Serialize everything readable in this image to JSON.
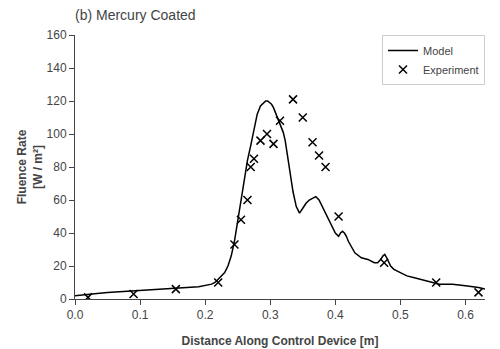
{
  "chart_data": {
    "type": "line",
    "title": "(b) Mercury Coated",
    "xlabel": "Distance Along Control Device [m]",
    "ylabel": "Fluence Rate\n[W / m²]",
    "xlim": [
      0,
      0.63
    ],
    "ylim": [
      0,
      160
    ],
    "xticks": [
      {
        "value": 0.0,
        "label": "0.0"
      },
      0.1,
      0.2,
      0.3,
      0.4,
      0.5,
      0.6
    ],
    "yticks": [
      0,
      20,
      40,
      60,
      80,
      100,
      120,
      140,
      160
    ],
    "grid": false,
    "legend": "upper right",
    "series": [
      {
        "name": "Model",
        "type": "line",
        "line_style": "solid",
        "color": "#000000",
        "x": [
          0.0,
          0.01,
          0.02,
          0.03,
          0.05,
          0.07,
          0.09,
          0.11,
          0.13,
          0.15,
          0.17,
          0.19,
          0.21,
          0.215,
          0.22,
          0.225,
          0.23,
          0.235,
          0.24,
          0.245,
          0.25,
          0.255,
          0.26,
          0.265,
          0.27,
          0.275,
          0.28,
          0.285,
          0.29,
          0.293,
          0.296,
          0.299,
          0.302,
          0.305,
          0.308,
          0.311,
          0.314,
          0.317,
          0.32,
          0.323,
          0.326,
          0.33,
          0.335,
          0.34,
          0.345,
          0.35,
          0.355,
          0.36,
          0.365,
          0.37,
          0.375,
          0.38,
          0.385,
          0.39,
          0.395,
          0.4,
          0.405,
          0.408,
          0.411,
          0.414,
          0.417,
          0.42,
          0.43,
          0.44,
          0.45,
          0.46,
          0.465,
          0.47,
          0.473,
          0.476,
          0.479,
          0.482,
          0.485,
          0.49,
          0.5,
          0.51,
          0.52,
          0.53,
          0.54,
          0.55,
          0.56,
          0.57,
          0.58,
          0.6,
          0.62,
          0.63
        ],
        "values": [
          2,
          2.5,
          3,
          3.2,
          4,
          4.5,
          5,
          5.5,
          6,
          6.5,
          7,
          7.5,
          9,
          10,
          12,
          14,
          16,
          20,
          26,
          35,
          47,
          60,
          72,
          84,
          93,
          103,
          112,
          117,
          119,
          120,
          120,
          119,
          118,
          116,
          113,
          110,
          107,
          105,
          101,
          96,
          88,
          78,
          65,
          56,
          52,
          55,
          58,
          60,
          61,
          62,
          60,
          56,
          52,
          47,
          43,
          40,
          38,
          40,
          41,
          40,
          38,
          35,
          28,
          25,
          24,
          22,
          22,
          24,
          26,
          27,
          25,
          22,
          20,
          18,
          16,
          14,
          13,
          12,
          11,
          10,
          9,
          9,
          9,
          8,
          7,
          6
        ]
      },
      {
        "name": "Experiment",
        "type": "scatter",
        "marker": "x",
        "color": "#000000",
        "x": [
          0.02,
          0.09,
          0.155,
          0.22,
          0.245,
          0.255,
          0.265,
          0.27,
          0.275,
          0.285,
          0.295,
          0.305,
          0.315,
          0.335,
          0.35,
          0.365,
          0.375,
          0.385,
          0.405,
          0.475,
          0.555,
          0.62
        ],
        "values": [
          1,
          3,
          6,
          10,
          33,
          48,
          60,
          80,
          85,
          96,
          100,
          94,
          108,
          121,
          110,
          95,
          87,
          80,
          50,
          22,
          10,
          4
        ]
      }
    ]
  }
}
